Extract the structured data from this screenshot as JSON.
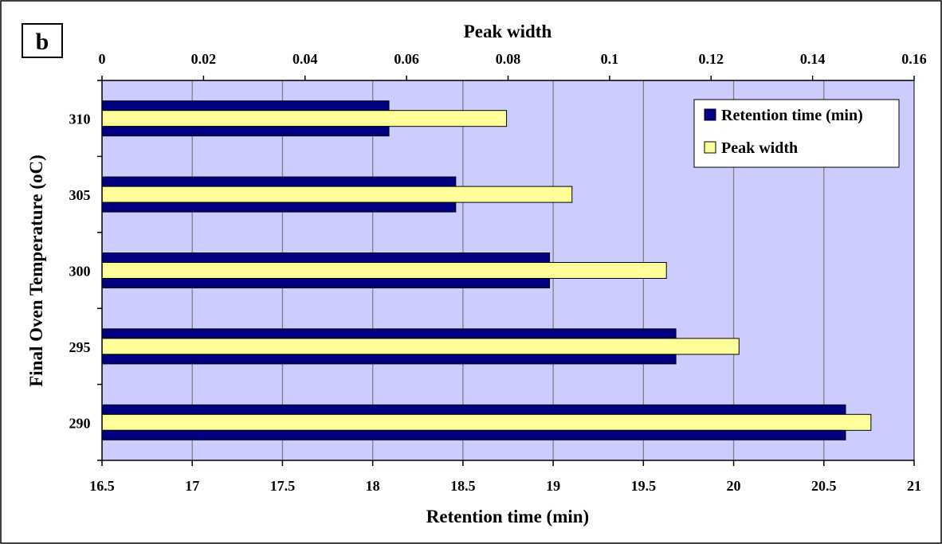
{
  "chart_data": {
    "type": "bar",
    "orientation": "horizontal",
    "panel_label": "b",
    "categories": [
      "310",
      "305",
      "300",
      "295",
      "290"
    ],
    "series": [
      {
        "name": "Retention time (min)",
        "axis": "bottom",
        "color": "#000080",
        "values": [
          18.09,
          18.46,
          18.98,
          19.68,
          20.62
        ]
      },
      {
        "name": "Peak width",
        "axis": "top",
        "color": "#ffff99",
        "values": [
          0.0797,
          0.0926,
          0.1112,
          0.1255,
          0.1515
        ]
      }
    ],
    "bottom_axis": {
      "label": "Retention time (min)",
      "range": [
        16.5,
        21
      ],
      "ticks": [
        "16.5",
        "17",
        "17.5",
        "18",
        "18.5",
        "19",
        "19.5",
        "20",
        "20.5",
        "21"
      ]
    },
    "top_axis": {
      "label": "Peak width",
      "range": [
        0,
        0.16
      ],
      "ticks": [
        "0",
        "0.02",
        "0.04",
        "0.06",
        "0.08",
        "0.1",
        "0.12",
        "0.14",
        "0.16"
      ]
    },
    "ylabel": "Final Oven Temperature (oC)",
    "grid": "vertical",
    "legend_position": "top-right",
    "colors": {
      "plot_background": "#ccccff",
      "gridline": "#808080"
    }
  }
}
